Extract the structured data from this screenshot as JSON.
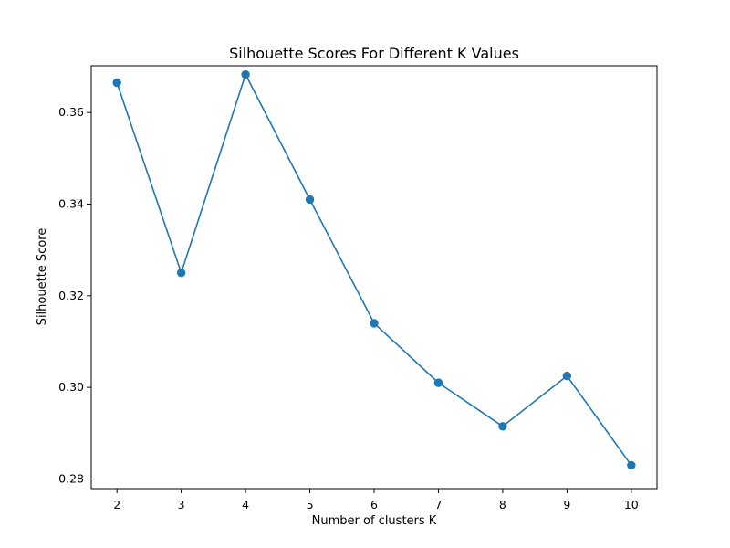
{
  "chart_data": {
    "type": "line",
    "title": "Silhouette Scores For Different K Values",
    "xlabel": "Number of clusters K",
    "ylabel": "Silhouette Score",
    "x": [
      2,
      3,
      4,
      5,
      6,
      7,
      8,
      9,
      10
    ],
    "series": [
      {
        "values": [
          0.3665,
          0.325,
          0.3683,
          0.341,
          0.314,
          0.301,
          0.2915,
          0.3025,
          0.283
        ]
      }
    ],
    "xlim": [
      1.6,
      10.4
    ],
    "ylim": [
      0.2779,
      0.3702
    ],
    "xticks": [
      2,
      3,
      4,
      5,
      6,
      7,
      8,
      9,
      10
    ],
    "yticks": [
      0.28,
      0.3,
      0.32,
      0.34,
      0.36
    ],
    "xtick_labels": [
      "2",
      "3",
      "4",
      "5",
      "6",
      "7",
      "8",
      "9",
      "10"
    ],
    "ytick_labels": [
      "0.28",
      "0.30",
      "0.32",
      "0.34",
      "0.36"
    ],
    "grid": false,
    "legend": false,
    "markers": true,
    "color": "#1f77b4"
  }
}
